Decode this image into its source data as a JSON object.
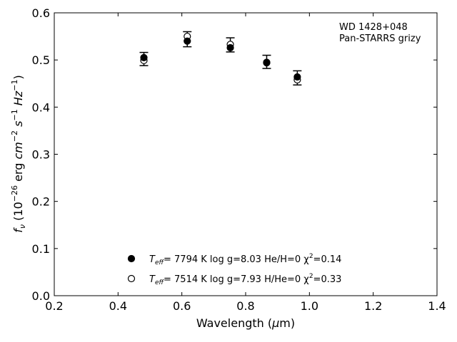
{
  "chart_data": {
    "type": "scatter",
    "annotation": [
      "WD 1428+048",
      "Pan-STARRS grizy"
    ],
    "xlabel": "Wavelength (μm)",
    "ylabel": "f_ν (10^-26 erg cm^-2 s^-1 Hz^-1)",
    "xlim": [
      0.2,
      1.4
    ],
    "ylim": [
      0.0,
      0.6
    ],
    "xticks": [
      "0.2",
      "0.4",
      "0.6",
      "0.8",
      "1.0",
      "1.2",
      "1.4"
    ],
    "yticks": [
      "0.0",
      "0.1",
      "0.2",
      "0.3",
      "0.4",
      "0.5",
      "0.6"
    ],
    "grid": false,
    "legend_position": "bottom-center",
    "observed": {
      "x": [
        0.481,
        0.617,
        0.752,
        0.866,
        0.962
      ],
      "y": [
        0.502,
        0.544,
        0.532,
        0.496,
        0.462
      ],
      "yerr": [
        0.014,
        0.016,
        0.015,
        0.014,
        0.015
      ]
    },
    "series": [
      {
        "name": "Teff= 7794 K log g=8.03 He/H=0 χ2=0.14",
        "legend": {
          "teff_label": "T",
          "teff_sub": "eff",
          "text": "=  7794 K  log g=8.03  He/H=0  χ",
          "chi_sup": "2",
          "chi_val": "=0.14"
        },
        "marker": "filled",
        "x": [
          0.481,
          0.617,
          0.752,
          0.866,
          0.962
        ],
        "y": [
          0.505,
          0.54,
          0.526,
          0.494,
          0.464
        ]
      },
      {
        "name": "Teff= 7514 K log g=7.93 H/He=0 χ2=0.33",
        "legend": {
          "teff_label": "T",
          "teff_sub": "eff",
          "text": "=  7514 K  log g=7.93  H/He=0  χ",
          "chi_sup": "2",
          "chi_val": "=0.33"
        },
        "marker": "open",
        "x": [
          0.481,
          0.617,
          0.752,
          0.866,
          0.962
        ],
        "y": [
          0.499,
          0.55,
          0.533,
          0.495,
          0.458
        ]
      }
    ]
  }
}
